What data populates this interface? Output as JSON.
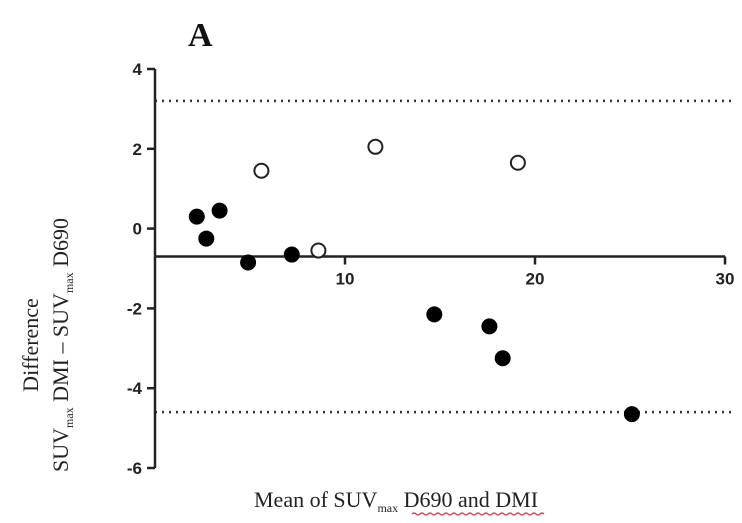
{
  "chart_data": {
    "type": "scatter",
    "panel_label": "A",
    "xlabel": {
      "main": "Mean of ",
      "suv": "SUV",
      "sub": "max",
      "rest": " D690 and DMI"
    },
    "ylabel": {
      "line1": "Difference",
      "line2": {
        "suv1": "SUV",
        "sub1": "max",
        "mid": " DMI – ",
        "suv2": "SUV",
        "sub2": "max",
        "end": " D690"
      }
    },
    "xlim": [
      0,
      30
    ],
    "ylim": [
      -6,
      4
    ],
    "xticks": [
      10,
      20,
      30
    ],
    "yticks": [
      4,
      2,
      0,
      -2,
      -4,
      -6
    ],
    "xtick_labels": [
      "10",
      "20",
      "30"
    ],
    "ytick_labels": [
      "4",
      "2",
      "0",
      "-2",
      "-4",
      "-6"
    ],
    "bias_line": -0.7,
    "limits_of_agreement": [
      3.2,
      -4.6
    ],
    "grid": false,
    "series": [
      {
        "marker": "filled",
        "points": [
          {
            "x": 2.2,
            "y": 0.3
          },
          {
            "x": 2.7,
            "y": -0.25
          },
          {
            "x": 3.4,
            "y": 0.45
          },
          {
            "x": 4.9,
            "y": -0.85
          },
          {
            "x": 7.2,
            "y": -0.65
          },
          {
            "x": 14.7,
            "y": -2.15
          },
          {
            "x": 17.6,
            "y": -2.45
          },
          {
            "x": 18.3,
            "y": -3.25
          },
          {
            "x": 25.1,
            "y": -4.65
          }
        ]
      },
      {
        "marker": "open",
        "points": [
          {
            "x": 5.6,
            "y": 1.45
          },
          {
            "x": 8.6,
            "y": -0.55
          },
          {
            "x": 11.6,
            "y": 2.05
          },
          {
            "x": 19.1,
            "y": 1.65
          }
        ]
      }
    ]
  },
  "colors": {
    "axis": "#222222",
    "filled": "#000000",
    "open_fill": "#ffffff",
    "spell_squiggle": "#dd2222"
  }
}
